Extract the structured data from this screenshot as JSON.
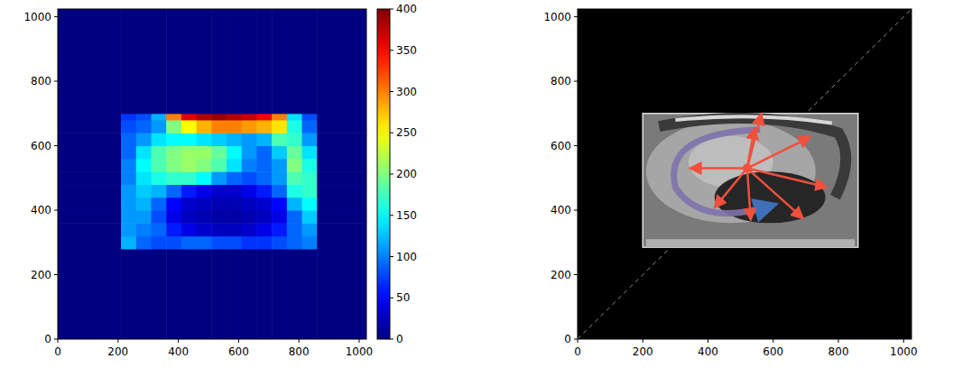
{
  "chart_data": [
    {
      "type": "heatmap",
      "xlim": [
        0,
        1024
      ],
      "ylim": [
        0,
        1024
      ],
      "xticks": [
        0,
        200,
        400,
        600,
        800,
        1000
      ],
      "yticks": [
        0,
        200,
        400,
        600,
        800,
        1000
      ],
      "x_edges": [
        0,
        210,
        260,
        310,
        360,
        410,
        460,
        510,
        560,
        610,
        660,
        710,
        760,
        810,
        860,
        1024
      ],
      "y_edges": [
        0,
        280,
        320,
        360,
        400,
        440,
        480,
        520,
        560,
        600,
        640,
        680,
        700,
        1024
      ],
      "cells": [
        [
          0,
          0,
          0,
          0,
          0,
          0,
          0,
          0,
          0,
          0,
          0,
          0,
          0,
          0,
          0
        ],
        [
          0,
          120,
          90,
          80,
          80,
          90,
          90,
          80,
          80,
          70,
          70,
          80,
          90,
          100,
          0
        ],
        [
          0,
          110,
          100,
          90,
          60,
          40,
          30,
          25,
          25,
          30,
          40,
          60,
          90,
          110,
          0
        ],
        [
          0,
          110,
          110,
          80,
          40,
          25,
          20,
          15,
          15,
          20,
          25,
          40,
          90,
          130,
          0
        ],
        [
          0,
          110,
          120,
          90,
          50,
          30,
          25,
          20,
          20,
          25,
          30,
          50,
          120,
          150,
          0
        ],
        [
          0,
          110,
          130,
          120,
          90,
          60,
          40,
          30,
          30,
          40,
          60,
          90,
          160,
          170,
          0
        ],
        [
          0,
          100,
          140,
          160,
          170,
          170,
          150,
          110,
          90,
          80,
          90,
          110,
          180,
          170,
          0
        ],
        [
          0,
          100,
          150,
          180,
          200,
          210,
          200,
          180,
          140,
          100,
          90,
          110,
          200,
          160,
          0
        ],
        [
          0,
          90,
          140,
          180,
          200,
          210,
          210,
          190,
          150,
          110,
          90,
          130,
          190,
          140,
          0
        ],
        [
          0,
          90,
          110,
          140,
          150,
          150,
          140,
          130,
          120,
          110,
          120,
          180,
          170,
          110,
          0
        ],
        [
          0,
          80,
          90,
          110,
          200,
          250,
          280,
          300,
          300,
          290,
          280,
          260,
          160,
          90,
          0
        ],
        [
          0,
          70,
          80,
          120,
          300,
          360,
          380,
          390,
          380,
          370,
          350,
          300,
          140,
          80,
          0
        ],
        [
          0,
          0,
          0,
          0,
          0,
          0,
          0,
          0,
          0,
          0,
          0,
          0,
          0,
          0,
          0
        ]
      ],
      "colorbar": {
        "range": [
          0,
          400
        ],
        "ticks": [
          0,
          50,
          100,
          150,
          200,
          250,
          300,
          350,
          400
        ]
      }
    },
    {
      "type": "image",
      "xlim": [
        0,
        1024
      ],
      "ylim": [
        0,
        1024
      ],
      "xticks": [
        0,
        200,
        400,
        600,
        800,
        1000
      ],
      "yticks": [
        0,
        200,
        400,
        600,
        800,
        1000
      ],
      "series": [
        {
          "x": [
            0,
            1024
          ],
          "values": [
            0,
            1024
          ],
          "line_style": "dashed",
          "color": "#8c8c8c"
        }
      ]
    }
  ]
}
